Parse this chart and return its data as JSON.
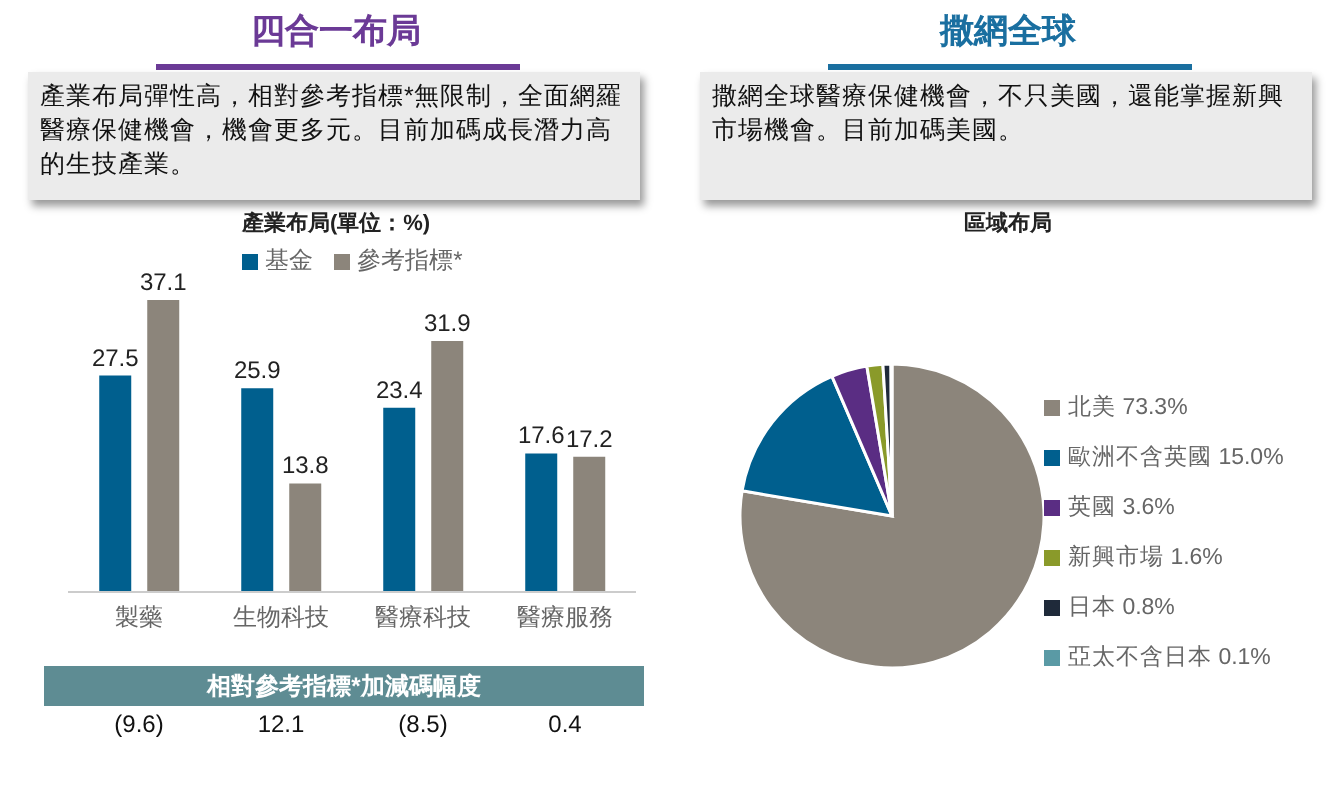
{
  "chart_data": [
    {
      "type": "bar",
      "title": "產業布局(單位：%)",
      "categories": [
        "製藥",
        "生物科技",
        "醫療科技",
        "醫療服務"
      ],
      "series": [
        {
          "name": "基金",
          "color": "#005f8e",
          "values": [
            27.5,
            25.9,
            23.4,
            17.6
          ]
        },
        {
          "name": "參考指標*",
          "color": "#8c857b",
          "values": [
            37.1,
            13.8,
            31.9,
            17.2
          ]
        }
      ],
      "data_labels": true,
      "legend": "top",
      "annotations": [
        "四合一布局",
        "產業布局彈性高，相對參考指標*無限制，全面網羅醫療保健機會，機會更多元。目前加碼成長潛力高的生技產業。",
        "相對參考指標*加減碼幅度",
        "(9.6)",
        "12.1",
        "(8.5)",
        "0.4"
      ]
    },
    {
      "type": "pie",
      "title": "區域布局",
      "categories": [
        "北美 73.3%",
        "歐洲不含英國 15.0%",
        "英國 3.6%",
        "新興市場 1.6%",
        "日本 0.8%",
        "亞太不含日本 0.1%"
      ],
      "values": [
        73.3,
        15.0,
        3.6,
        1.6,
        0.8,
        0.1
      ],
      "colors": [
        "#8c857b",
        "#005f8e",
        "#5a2d83",
        "#8a9a2a",
        "#1f2a3a",
        "#5a9aa5"
      ],
      "legend": "right",
      "annotations": [
        "撒網全球",
        "撒網全球醫療保健機會，不只美國，還能掌握新興市場機會。目前加碼美國。"
      ]
    }
  ]
}
